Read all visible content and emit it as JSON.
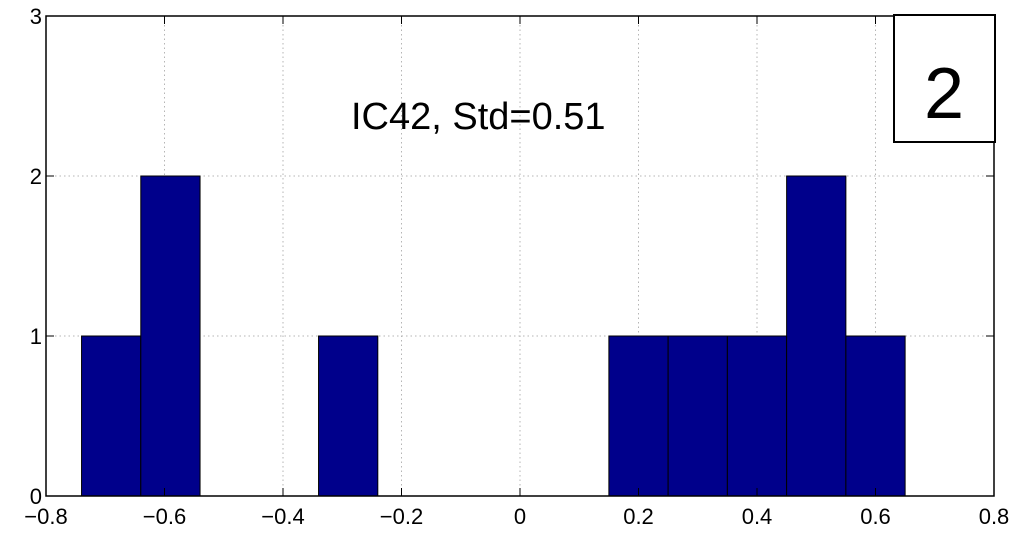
{
  "chart_data": {
    "type": "bar",
    "title": "",
    "xlabel": "",
    "ylabel": "",
    "annotation": "IC42, Std=0.51",
    "panel_label": "2",
    "xlim": [
      -0.8,
      0.8
    ],
    "ylim": [
      0,
      3
    ],
    "grid": true,
    "bar_color": "#00008B",
    "bins": [
      {
        "from": -0.74,
        "to": -0.64,
        "count": 1
      },
      {
        "from": -0.64,
        "to": -0.54,
        "count": 2
      },
      {
        "from": -0.34,
        "to": -0.24,
        "count": 1
      },
      {
        "from": 0.15,
        "to": 0.25,
        "count": 1
      },
      {
        "from": 0.25,
        "to": 0.35,
        "count": 1
      },
      {
        "from": 0.35,
        "to": 0.45,
        "count": 1
      },
      {
        "from": 0.45,
        "to": 0.55,
        "count": 2
      },
      {
        "from": 0.55,
        "to": 0.65,
        "count": 1
      }
    ],
    "x_ticks": [
      {
        "value": -0.8,
        "label": "−0.8"
      },
      {
        "value": -0.6,
        "label": "−0.6"
      },
      {
        "value": -0.4,
        "label": "−0.4"
      },
      {
        "value": -0.2,
        "label": "−0.2"
      },
      {
        "value": 0,
        "label": "0"
      },
      {
        "value": 0.2,
        "label": "0.2"
      },
      {
        "value": 0.4,
        "label": "0.4"
      },
      {
        "value": 0.6,
        "label": "0.6"
      },
      {
        "value": 0.8,
        "label": "0.8"
      }
    ],
    "y_ticks": [
      {
        "value": 0,
        "label": "0"
      },
      {
        "value": 1,
        "label": "1"
      },
      {
        "value": 2,
        "label": "2"
      },
      {
        "value": 3,
        "label": "3"
      }
    ]
  }
}
